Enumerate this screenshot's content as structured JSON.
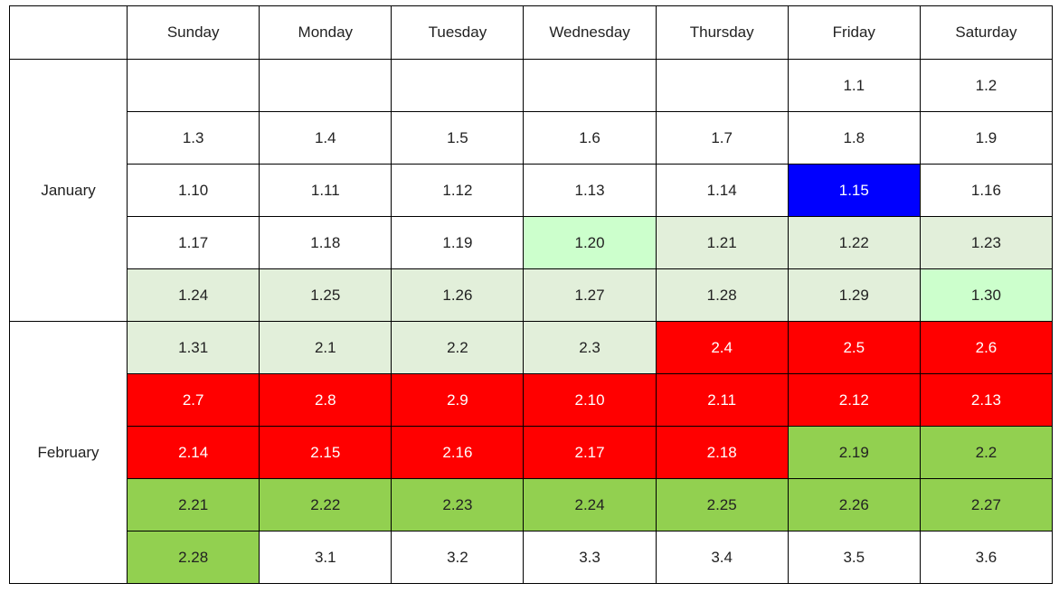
{
  "table": {
    "corner": "",
    "days": [
      "Sunday",
      "Monday",
      "Tuesday",
      "Wednesday",
      "Thursday",
      "Friday",
      "Saturday"
    ],
    "months": [
      {
        "name": "January",
        "weeks": [
          [
            {
              "text": "",
              "bg": "#ffffff",
              "fg": "#222222"
            },
            {
              "text": "",
              "bg": "#ffffff",
              "fg": "#222222"
            },
            {
              "text": "",
              "bg": "#ffffff",
              "fg": "#222222"
            },
            {
              "text": "",
              "bg": "#ffffff",
              "fg": "#222222"
            },
            {
              "text": "",
              "bg": "#ffffff",
              "fg": "#222222"
            },
            {
              "text": "1.1",
              "bg": "#ffffff",
              "fg": "#222222"
            },
            {
              "text": "1.2",
              "bg": "#ffffff",
              "fg": "#222222"
            }
          ],
          [
            {
              "text": "1.3",
              "bg": "#ffffff",
              "fg": "#222222"
            },
            {
              "text": "1.4",
              "bg": "#ffffff",
              "fg": "#222222"
            },
            {
              "text": "1.5",
              "bg": "#ffffff",
              "fg": "#222222"
            },
            {
              "text": "1.6",
              "bg": "#ffffff",
              "fg": "#222222"
            },
            {
              "text": "1.7",
              "bg": "#ffffff",
              "fg": "#222222"
            },
            {
              "text": "1.8",
              "bg": "#ffffff",
              "fg": "#222222"
            },
            {
              "text": "1.9",
              "bg": "#ffffff",
              "fg": "#222222"
            }
          ],
          [
            {
              "text": "1.10",
              "bg": "#ffffff",
              "fg": "#222222"
            },
            {
              "text": "1.11",
              "bg": "#ffffff",
              "fg": "#222222"
            },
            {
              "text": "1.12",
              "bg": "#ffffff",
              "fg": "#222222"
            },
            {
              "text": "1.13",
              "bg": "#ffffff",
              "fg": "#222222"
            },
            {
              "text": "1.14",
              "bg": "#ffffff",
              "fg": "#222222"
            },
            {
              "text": "1.15",
              "bg": "#0000ff",
              "fg": "#ffffff"
            },
            {
              "text": "1.16",
              "bg": "#ffffff",
              "fg": "#222222"
            }
          ],
          [
            {
              "text": "1.17",
              "bg": "#ffffff",
              "fg": "#222222"
            },
            {
              "text": "1.18",
              "bg": "#ffffff",
              "fg": "#222222"
            },
            {
              "text": "1.19",
              "bg": "#ffffff",
              "fg": "#222222"
            },
            {
              "text": "1.20",
              "bg": "#ccffcc",
              "fg": "#222222"
            },
            {
              "text": "1.21",
              "bg": "#e2efda",
              "fg": "#222222"
            },
            {
              "text": "1.22",
              "bg": "#e2efda",
              "fg": "#222222"
            },
            {
              "text": "1.23",
              "bg": "#e2efda",
              "fg": "#222222"
            }
          ],
          [
            {
              "text": "1.24",
              "bg": "#e2efda",
              "fg": "#222222"
            },
            {
              "text": "1.25",
              "bg": "#e2efda",
              "fg": "#222222"
            },
            {
              "text": "1.26",
              "bg": "#e2efda",
              "fg": "#222222"
            },
            {
              "text": "1.27",
              "bg": "#e2efda",
              "fg": "#222222"
            },
            {
              "text": "1.28",
              "bg": "#e2efda",
              "fg": "#222222"
            },
            {
              "text": "1.29",
              "bg": "#e2efda",
              "fg": "#222222"
            },
            {
              "text": "1.30",
              "bg": "#ccffcc",
              "fg": "#222222"
            }
          ]
        ]
      },
      {
        "name": "February",
        "weeks": [
          [
            {
              "text": "1.31",
              "bg": "#e2efda",
              "fg": "#222222"
            },
            {
              "text": "2.1",
              "bg": "#e2efda",
              "fg": "#222222"
            },
            {
              "text": "2.2",
              "bg": "#e2efda",
              "fg": "#222222"
            },
            {
              "text": "2.3",
              "bg": "#e2efda",
              "fg": "#222222"
            },
            {
              "text": "2.4",
              "bg": "#ff0000",
              "fg": "#ffffff"
            },
            {
              "text": "2.5",
              "bg": "#ff0000",
              "fg": "#ffffff"
            },
            {
              "text": "2.6",
              "bg": "#ff0000",
              "fg": "#ffffff"
            }
          ],
          [
            {
              "text": "2.7",
              "bg": "#ff0000",
              "fg": "#ffffff"
            },
            {
              "text": "2.8",
              "bg": "#ff0000",
              "fg": "#ffffff"
            },
            {
              "text": "2.9",
              "bg": "#ff0000",
              "fg": "#ffffff"
            },
            {
              "text": "2.10",
              "bg": "#ff0000",
              "fg": "#ffffff"
            },
            {
              "text": "2.11",
              "bg": "#ff0000",
              "fg": "#ffffff"
            },
            {
              "text": "2.12",
              "bg": "#ff0000",
              "fg": "#ffffff"
            },
            {
              "text": "2.13",
              "bg": "#ff0000",
              "fg": "#ffffff"
            }
          ],
          [
            {
              "text": "2.14",
              "bg": "#ff0000",
              "fg": "#ffffff"
            },
            {
              "text": "2.15",
              "bg": "#ff0000",
              "fg": "#ffffff"
            },
            {
              "text": "2.16",
              "bg": "#ff0000",
              "fg": "#ffffff"
            },
            {
              "text": "2.17",
              "bg": "#ff0000",
              "fg": "#ffffff"
            },
            {
              "text": "2.18",
              "bg": "#ff0000",
              "fg": "#ffffff"
            },
            {
              "text": "2.19",
              "bg": "#92d050",
              "fg": "#222222"
            },
            {
              "text": "2.2",
              "bg": "#92d050",
              "fg": "#222222"
            }
          ],
          [
            {
              "text": "2.21",
              "bg": "#92d050",
              "fg": "#222222"
            },
            {
              "text": "2.22",
              "bg": "#92d050",
              "fg": "#222222"
            },
            {
              "text": "2.23",
              "bg": "#92d050",
              "fg": "#222222"
            },
            {
              "text": "2.24",
              "bg": "#92d050",
              "fg": "#222222"
            },
            {
              "text": "2.25",
              "bg": "#92d050",
              "fg": "#222222"
            },
            {
              "text": "2.26",
              "bg": "#92d050",
              "fg": "#222222"
            },
            {
              "text": "2.27",
              "bg": "#92d050",
              "fg": "#222222"
            }
          ],
          [
            {
              "text": "2.28",
              "bg": "#92d050",
              "fg": "#222222"
            },
            {
              "text": "3.1",
              "bg": "#ffffff",
              "fg": "#222222"
            },
            {
              "text": "3.2",
              "bg": "#ffffff",
              "fg": "#222222"
            },
            {
              "text": "3.3",
              "bg": "#ffffff",
              "fg": "#222222"
            },
            {
              "text": "3.4",
              "bg": "#ffffff",
              "fg": "#222222"
            },
            {
              "text": "3.5",
              "bg": "#ffffff",
              "fg": "#222222"
            },
            {
              "text": "3.6",
              "bg": "#ffffff",
              "fg": "#222222"
            }
          ]
        ]
      }
    ]
  }
}
